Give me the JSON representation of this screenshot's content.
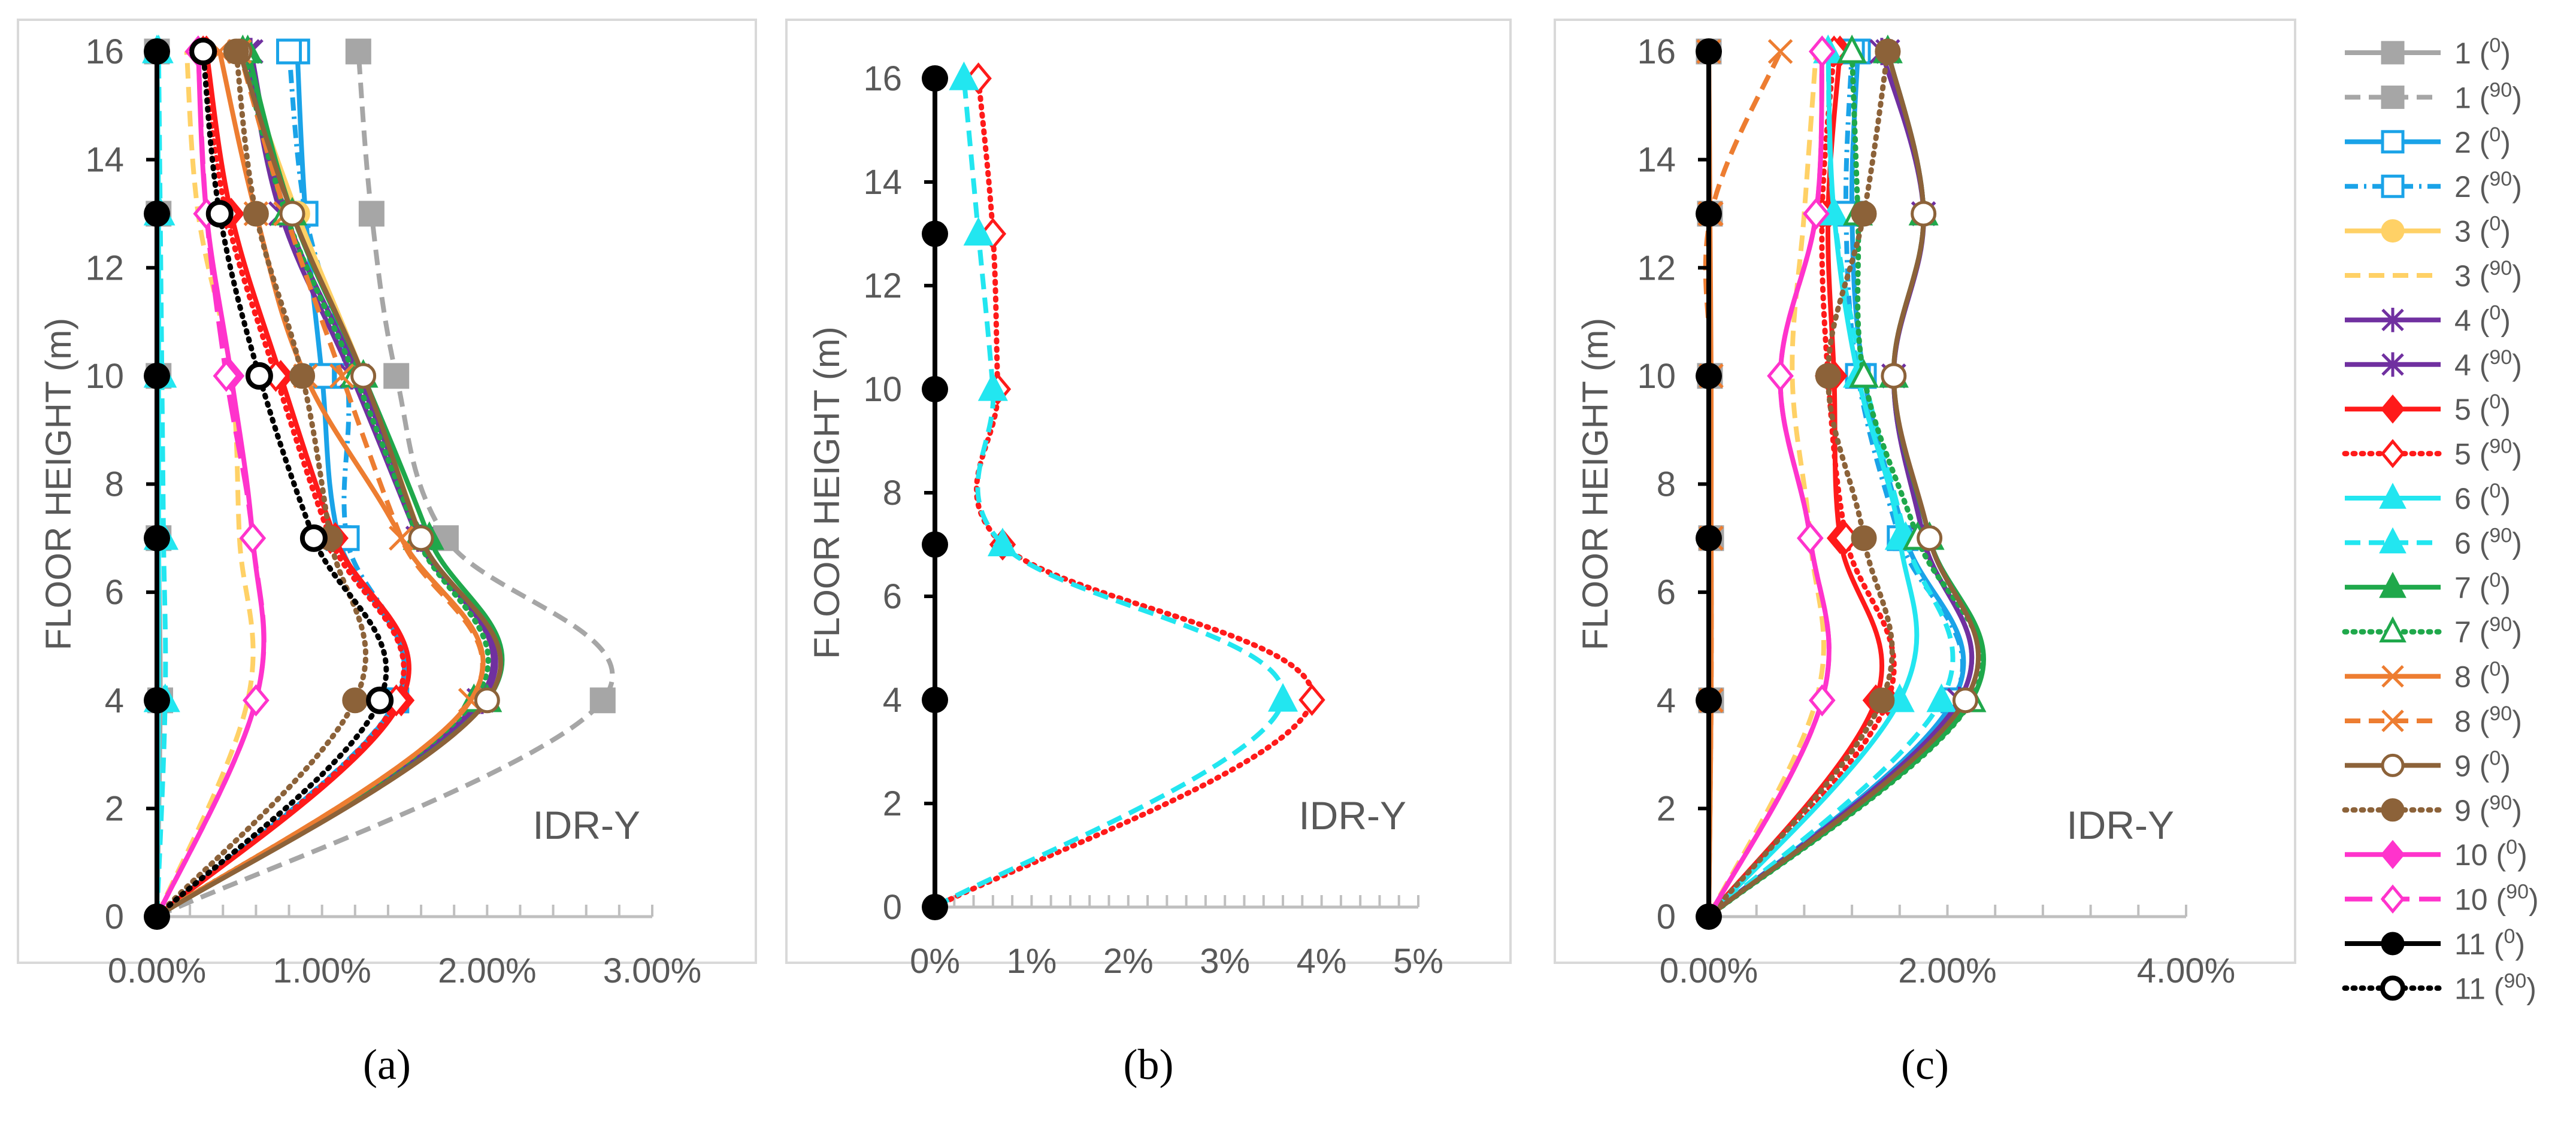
{
  "colors": {
    "s1": "#a6a6a6",
    "s2": "#1aa3e8",
    "s3": "#ffd166",
    "s4": "#7030a0",
    "s5": "#ff1a1a",
    "s6": "#22e6f0",
    "s7": "#1fa84b",
    "s8": "#ed7d31",
    "s9": "#8c6239",
    "s10": "#ff33cc",
    "s11": "#000000",
    "axis": "#bfbfbf",
    "text": "#595959"
  },
  "legend": [
    {
      "name": "1",
      "deg": "0",
      "key": "s1",
      "dash": "solid",
      "marker": "square-filled"
    },
    {
      "name": "1",
      "deg": "90",
      "key": "s1",
      "dash": "dash",
      "marker": "square-filled"
    },
    {
      "name": "2",
      "deg": "0",
      "key": "s2",
      "dash": "solid",
      "marker": "square-open"
    },
    {
      "name": "2",
      "deg": "90",
      "key": "s2",
      "dash": "dashdot",
      "marker": "square-open"
    },
    {
      "name": "3",
      "deg": "0",
      "key": "s3",
      "dash": "solid",
      "marker": "circle-filled"
    },
    {
      "name": "3",
      "deg": "90",
      "key": "s3",
      "dash": "dash",
      "marker": "none"
    },
    {
      "name": "4",
      "deg": "0",
      "key": "s4",
      "dash": "solid",
      "marker": "star"
    },
    {
      "name": "4",
      "deg": "90",
      "key": "s4",
      "dash": "solid",
      "marker": "star"
    },
    {
      "name": "5",
      "deg": "0",
      "key": "s5",
      "dash": "solid",
      "marker": "diamond-filled"
    },
    {
      "name": "5",
      "deg": "90",
      "key": "s5",
      "dash": "dot",
      "marker": "diamond-open"
    },
    {
      "name": "6",
      "deg": "0",
      "key": "s6",
      "dash": "solid",
      "marker": "triangle-filled"
    },
    {
      "name": "6",
      "deg": "90",
      "key": "s6",
      "dash": "dash",
      "marker": "triangle-filled"
    },
    {
      "name": "7",
      "deg": "0",
      "key": "s7",
      "dash": "solid",
      "marker": "triangle-filled"
    },
    {
      "name": "7",
      "deg": "90",
      "key": "s7",
      "dash": "dot",
      "marker": "triangle-open"
    },
    {
      "name": "8",
      "deg": "0",
      "key": "s8",
      "dash": "solid",
      "marker": "x"
    },
    {
      "name": "8",
      "deg": "90",
      "key": "s8",
      "dash": "dash",
      "marker": "x"
    },
    {
      "name": "9",
      "deg": "0",
      "key": "s9",
      "dash": "solid",
      "marker": "circle-open"
    },
    {
      "name": "9",
      "deg": "90",
      "key": "s9",
      "dash": "dot",
      "marker": "circle-filled"
    },
    {
      "name": "10",
      "deg": "0",
      "key": "s10",
      "dash": "solid",
      "marker": "diamond-filled"
    },
    {
      "name": "10",
      "deg": "90",
      "key": "s10",
      "dash": "longdash",
      "marker": "diamond-open"
    },
    {
      "name": "11",
      "deg": "0",
      "key": "s11",
      "dash": "solid",
      "marker": "circle-filled"
    },
    {
      "name": "11",
      "deg": "90",
      "key": "s11",
      "dash": "dot",
      "marker": "circle-open-thick"
    }
  ],
  "chart_data": [
    {
      "type": "line",
      "panel_label": "(a)",
      "annotation": "IDR-Y",
      "ylabel": "FLOOR HEIGHT (m)",
      "xlim": [
        0,
        3
      ],
      "ylim": [
        0,
        16
      ],
      "xticks": [
        0,
        1,
        2,
        3
      ],
      "yticks": [
        0,
        2,
        4,
        6,
        8,
        10,
        12,
        14,
        16
      ],
      "xtick_labels": [
        "0.00%",
        "1.00%",
        "2.00%",
        "3.00%"
      ],
      "xminor": 0.2,
      "grid": false,
      "x_unit": "%",
      "y": [
        0,
        4,
        7,
        10,
        13,
        16
      ],
      "series": [
        {
          "legend": 0,
          "x": [
            0,
            0.02,
            0.01,
            0.01,
            0.01,
            0.0
          ]
        },
        {
          "legend": 1,
          "x": [
            0,
            2.7,
            1.75,
            1.45,
            1.3,
            1.22
          ]
        },
        {
          "legend": 2,
          "x": [
            0,
            1.45,
            1.1,
            1.0,
            0.9,
            0.85
          ]
        },
        {
          "legend": 3,
          "x": [
            0,
            1.45,
            1.15,
            1.15,
            0.9,
            0.8
          ]
        },
        {
          "legend": 4,
          "x": [
            0,
            1.95,
            1.6,
            1.25,
            0.85,
            0.5
          ]
        },
        {
          "legend": 5,
          "x": [
            0,
            0.55,
            0.5,
            0.45,
            0.25,
            0.18
          ]
        },
        {
          "legend": 6,
          "x": [
            0,
            1.97,
            1.58,
            1.18,
            0.75,
            0.55
          ]
        },
        {
          "legend": 7,
          "x": [
            0,
            1.95,
            1.6,
            1.22,
            0.78,
            0.57
          ]
        },
        {
          "legend": 8,
          "x": [
            0,
            1.48,
            1.08,
            0.75,
            0.45,
            0.3
          ]
        },
        {
          "legend": 9,
          "x": [
            0,
            1.45,
            1.05,
            0.72,
            0.42,
            0.28
          ]
        },
        {
          "legend": 10,
          "x": [
            0,
            0.01,
            0.01,
            0.01,
            0.01,
            0.0
          ]
        },
        {
          "legend": 11,
          "x": [
            0,
            0.05,
            0.04,
            0.03,
            0.02,
            0.01
          ]
        },
        {
          "legend": 12,
          "x": [
            0,
            2.0,
            1.65,
            1.25,
            0.82,
            0.55
          ]
        },
        {
          "legend": 13,
          "x": [
            0,
            1.92,
            1.58,
            1.2,
            0.78,
            0.52
          ]
        },
        {
          "legend": 14,
          "x": [
            0,
            1.9,
            1.48,
            0.9,
            0.6,
            0.38
          ]
        },
        {
          "legend": 15,
          "x": [
            0,
            1.9,
            1.48,
            1.12,
            0.78,
            0.5
          ]
        },
        {
          "legend": 16,
          "x": [
            0,
            2.0,
            1.6,
            1.25,
            0.82,
            0.5
          ]
        },
        {
          "legend": 17,
          "x": [
            0,
            1.2,
            1.05,
            0.88,
            0.6,
            0.48
          ]
        },
        {
          "legend": 18,
          "x": [
            0,
            0.6,
            0.58,
            0.45,
            0.3,
            0.25
          ]
        },
        {
          "legend": 19,
          "x": [
            0,
            0.6,
            0.58,
            0.42,
            0.3,
            0.25
          ]
        },
        {
          "legend": 20,
          "x": [
            0,
            0.0,
            0.0,
            0.0,
            0.0,
            0.0
          ]
        },
        {
          "legend": 21,
          "x": [
            0,
            1.35,
            0.95,
            0.62,
            0.38,
            0.28
          ]
        }
      ]
    },
    {
      "type": "line",
      "panel_label": "(b)",
      "annotation": "IDR-Y",
      "ylabel": "FLOOR HEIGHT (m)",
      "xlim": [
        0,
        5
      ],
      "ylim": [
        0,
        16
      ],
      "xticks": [
        0,
        1,
        2,
        3,
        4,
        5
      ],
      "yticks": [
        0,
        2,
        4,
        6,
        8,
        10,
        12,
        14,
        16
      ],
      "xtick_labels": [
        "0%",
        "1%",
        "2%",
        "3%",
        "4%",
        "5%"
      ],
      "xminor": 0.2,
      "grid": false,
      "x_unit": "%",
      "y": [
        0,
        4,
        7,
        10,
        13,
        16
      ],
      "series": [
        {
          "legend": 9,
          "x": [
            0,
            3.9,
            0.7,
            0.65,
            0.6,
            0.45
          ]
        },
        {
          "legend": 11,
          "x": [
            0,
            3.6,
            0.7,
            0.6,
            0.45,
            0.3
          ]
        },
        {
          "legend": 20,
          "x": [
            0,
            0.0,
            0.0,
            0.0,
            0.0,
            0.0
          ]
        }
      ]
    },
    {
      "type": "line",
      "panel_label": "(c)",
      "annotation": "IDR-Y",
      "ylabel": "FLOOR HEIGHT (m)",
      "xlim": [
        0,
        4
      ],
      "ylim": [
        0,
        16
      ],
      "xticks": [
        0,
        2,
        4
      ],
      "yticks": [
        0,
        2,
        4,
        6,
        8,
        10,
        12,
        14,
        16
      ],
      "xtick_labels": [
        "0.00%",
        "2.00%",
        "4.00%"
      ],
      "xminor": 0.4,
      "grid": false,
      "x_unit": "%",
      "y": [
        0,
        4,
        7,
        10,
        13,
        16
      ],
      "series": [
        {
          "legend": 0,
          "x": [
            0,
            0.02,
            0.02,
            0.01,
            0.01,
            0.0
          ]
        },
        {
          "legend": 2,
          "x": [
            0,
            2.05,
            1.65,
            1.3,
            1.2,
            1.25
          ]
        },
        {
          "legend": 3,
          "x": [
            0,
            2.05,
            1.6,
            1.25,
            1.15,
            1.2
          ]
        },
        {
          "legend": 5,
          "x": [
            0,
            0.9,
            0.85,
            0.7,
            0.8,
            0.9
          ]
        },
        {
          "legend": 6,
          "x": [
            0,
            2.1,
            1.8,
            1.55,
            1.8,
            1.5
          ]
        },
        {
          "legend": 7,
          "x": [
            0,
            2.1,
            1.8,
            1.55,
            1.8,
            1.45
          ]
        },
        {
          "legend": 8,
          "x": [
            0,
            1.4,
            1.1,
            1.05,
            1.0,
            1.1
          ]
        },
        {
          "legend": 9,
          "x": [
            0,
            1.5,
            1.15,
            1.0,
            0.95,
            1.05
          ]
        },
        {
          "legend": 10,
          "x": [
            0,
            1.6,
            1.6,
            1.25,
            1.05,
            1.0
          ]
        },
        {
          "legend": 11,
          "x": [
            0,
            1.95,
            1.65,
            1.3,
            1.05,
            1.0
          ]
        },
        {
          "legend": 12,
          "x": [
            0,
            2.2,
            1.85,
            1.55,
            1.8,
            1.5
          ]
        },
        {
          "legend": 13,
          "x": [
            0,
            2.2,
            1.75,
            1.3,
            1.25,
            1.2
          ]
        },
        {
          "legend": 14,
          "x": [
            0,
            0.02,
            0.02,
            0.02,
            0.01,
            0.0
          ]
        },
        {
          "legend": 15,
          "x": [
            0,
            0.02,
            0.02,
            0.02,
            0.02,
            0.6
          ]
        },
        {
          "legend": 16,
          "x": [
            0,
            2.15,
            1.85,
            1.55,
            1.8,
            1.5
          ]
        },
        {
          "legend": 17,
          "x": [
            0,
            1.45,
            1.3,
            1.0,
            1.3,
            1.5
          ]
        },
        {
          "legend": 18,
          "x": [
            0,
            0.95,
            0.85,
            0.6,
            0.9,
            0.95
          ]
        },
        {
          "legend": 19,
          "x": [
            0,
            0.95,
            0.85,
            0.6,
            0.9,
            0.95
          ]
        },
        {
          "legend": 20,
          "x": [
            0,
            0.0,
            0.0,
            0.0,
            0.0,
            0.0
          ]
        }
      ]
    }
  ]
}
